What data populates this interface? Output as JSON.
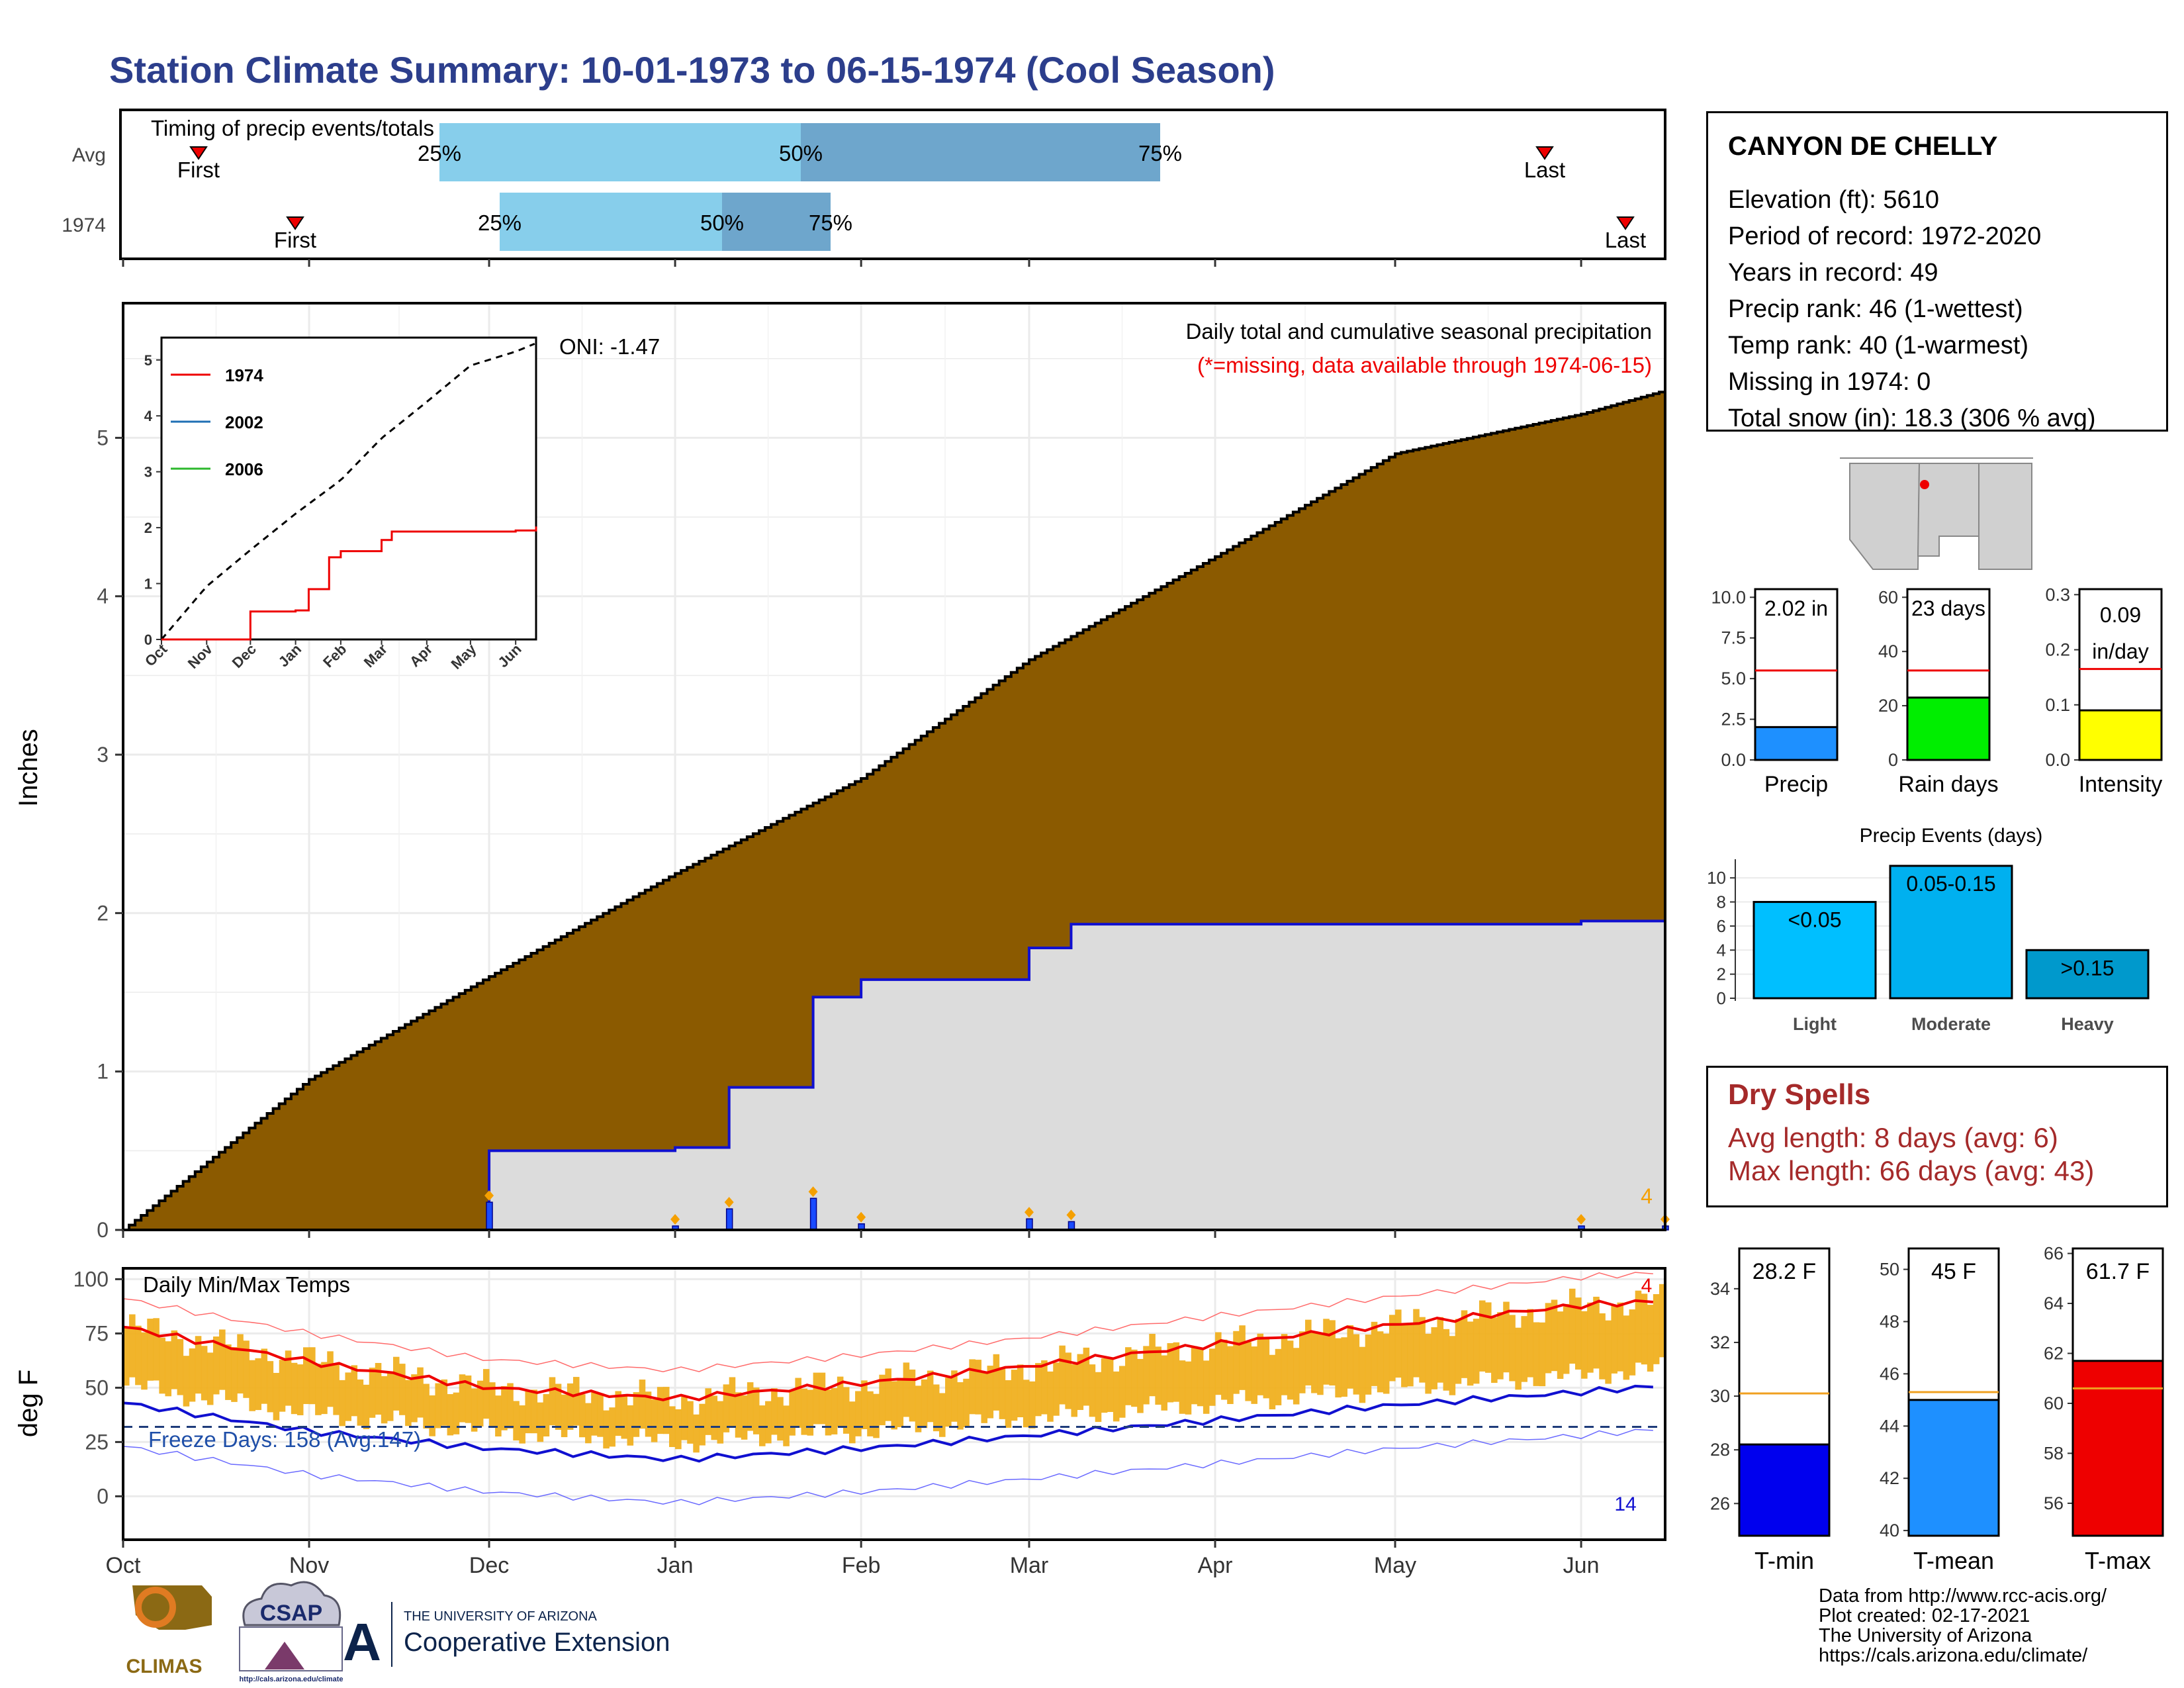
{
  "title": "Station Climate Summary: 10-01-1973 to 06-15-1974 (Cool Season)",
  "colors": {
    "title": "#2c3e8c",
    "cum_current": "#8b5a00",
    "cum_avg_fill": "#dcdcdc",
    "event_light": "#87ceeb",
    "event_dark": "#6ea6cc"
  },
  "timing": {
    "label": "Timing of precip events/totals",
    "rows": [
      "Avg",
      "1974"
    ],
    "avg": {
      "first": "First",
      "last": "Last",
      "p25": "25%",
      "p50": "50%",
      "p75": "75%"
    },
    "current": {
      "first": "First",
      "last": "Last",
      "p25": "25%",
      "p50": "50%",
      "p75": "75%"
    }
  },
  "station": {
    "name": "CANYON DE CHELLY",
    "lines": [
      "Elevation (ft): 5610",
      "Period of record: 1972-2020",
      "Years in record: 49",
      "Precip rank: 46 (1-wettest)",
      "Temp rank: 40 (1-warmest)",
      "Missing in 1974: 0",
      "Total snow (in): 18.3 (306 % avg)"
    ]
  },
  "precip_panel": {
    "ylabel": "Inches",
    "oni": "ONI: -1.47",
    "caption1": "Daily total and cumulative seasonal precipitation",
    "caption2": "(*=missing, data available through 1974-06-15)",
    "count_label": "4",
    "yticks": [
      "0",
      "1",
      "2",
      "3",
      "4",
      "5"
    ]
  },
  "temp_panel": {
    "ylabel": "deg F",
    "title": "Daily Min/Max Temps",
    "freeze": "Freeze Days: 158 (Avg:147)",
    "hi_count": "4",
    "lo_count": "14",
    "yticks": [
      "0",
      "25",
      "50",
      "75",
      "100"
    ]
  },
  "months": [
    "Oct",
    "Nov",
    "Dec",
    "Jan",
    "Feb",
    "Mar",
    "Apr",
    "May",
    "Jun"
  ],
  "inset": {
    "legend": [
      "1974",
      "2002",
      "2006"
    ],
    "months": [
      "Oct",
      "Nov",
      "Dec",
      "Jan",
      "Feb",
      "Mar",
      "Apr",
      "May",
      "Jun"
    ],
    "yticks": [
      "0",
      "1",
      "2",
      "3",
      "4",
      "5"
    ]
  },
  "mini_bars": {
    "precip": {
      "label": "Precip",
      "value_text": "2.02 in",
      "yticks": [
        "0.0",
        "2.5",
        "5.0",
        "7.5",
        "10.0"
      ]
    },
    "raindays": {
      "label": "Rain days",
      "value_text": "23 days",
      "yticks": [
        "0",
        "20",
        "40",
        "60"
      ]
    },
    "intensity": {
      "label": "Intensity",
      "value_text1": "0.09",
      "value_text2": "in/day",
      "yticks": [
        "0.0",
        "0.1",
        "0.2",
        "0.3"
      ]
    }
  },
  "events": {
    "title": "Precip Events (days)",
    "categories": [
      "Light",
      "Moderate",
      "Heavy"
    ],
    "labels": [
      "<0.05",
      "0.05-0.15",
      ">0.15"
    ],
    "yticks": [
      "0",
      "2",
      "4",
      "6",
      "8",
      "10"
    ]
  },
  "dry": {
    "title": "Dry Spells",
    "line1": "Avg length: 8 days (avg: 6)",
    "line2": "Max length: 66 days (avg: 43)"
  },
  "temp_bars": {
    "tmin": {
      "label": "T-min",
      "value_text": "28.2 F",
      "yticks": [
        "26",
        "28",
        "30",
        "32",
        "34"
      ]
    },
    "tmean": {
      "label": "T-mean",
      "value_text": "45 F",
      "yticks": [
        "40",
        "42",
        "44",
        "46",
        "48",
        "50"
      ]
    },
    "tmax": {
      "label": "T-max",
      "value_text": "61.7 F",
      "yticks": [
        "56",
        "58",
        "60",
        "62",
        "64",
        "66"
      ]
    }
  },
  "credits": [
    "Data from http://www.rcc-acis.org/",
    "Plot created: 02-17-2021",
    "The University of Arizona",
    "https://cals.arizona.edu/climate/"
  ],
  "logos": {
    "climas": "CLIMAS",
    "csap": "CSAP",
    "csap_url": "http://cals.arizona.edu/climate",
    "ua_small": "THE UNIVERSITY OF ARIZONA",
    "ua_big": "Cooperative Extension"
  },
  "chart_data": [
    {
      "type": "area",
      "title": "Daily total and cumulative seasonal precipitation",
      "ylabel": "Inches",
      "x_range": [
        "1973-10-01",
        "1974-06-15"
      ],
      "ylim": [
        0,
        5.85
      ],
      "series": [
        {
          "name": "Cumulative 1974",
          "x": [
            "1973-10-01",
            "1973-11-01",
            "1973-12-01",
            "1974-01-01",
            "1974-01-10",
            "1974-01-24",
            "1974-02-01",
            "1974-02-26",
            "1974-03-01",
            "1974-03-08",
            "1974-06-01",
            "1974-06-15"
          ],
          "values": [
            0,
            0,
            0.5,
            0.52,
            0.9,
            1.47,
            1.58,
            1.58,
            1.78,
            1.93,
            1.95,
            2.02
          ]
        },
        {
          "name": "Average cumulative",
          "x": [
            "1973-10-01",
            "1973-11-01",
            "1973-12-01",
            "1974-01-01",
            "1974-02-01",
            "1974-03-01",
            "1974-04-01",
            "1974-05-01",
            "1974-06-01",
            "1974-06-15"
          ],
          "values": [
            0,
            0.95,
            1.6,
            2.25,
            2.85,
            3.6,
            4.25,
            4.9,
            5.15,
            5.3
          ]
        }
      ],
      "grid": true
    },
    {
      "type": "line",
      "title": "Daily Min/Max Temps",
      "ylabel": "deg F",
      "ylim": [
        -20,
        105
      ],
      "series": [
        {
          "name": "Avg max",
          "x": [
            "10-01",
            "11-01",
            "12-01",
            "01-01",
            "02-01",
            "03-01",
            "04-01",
            "05-01",
            "06-01",
            "06-15"
          ],
          "values": [
            78,
            62,
            50,
            45,
            52,
            60,
            70,
            79,
            88,
            90
          ]
        },
        {
          "name": "Avg min",
          "x": [
            "10-01",
            "11-01",
            "12-01",
            "01-01",
            "02-01",
            "03-01",
            "04-01",
            "05-01",
            "06-01",
            "06-15"
          ],
          "values": [
            43,
            30,
            22,
            17,
            22,
            28,
            35,
            42,
            48,
            51
          ]
        }
      ],
      "freeze_line": 32
    },
    {
      "type": "bar",
      "categories": [
        "Light",
        "Moderate",
        "Heavy"
      ],
      "values": [
        8,
        11,
        4
      ],
      "ylim": [
        0,
        11
      ]
    },
    {
      "type": "bar",
      "categories": [
        "Precip",
        "Rain days",
        "Intensity"
      ],
      "values": [
        2.02,
        23,
        0.09
      ],
      "averages": [
        5.5,
        33,
        0.165
      ]
    },
    {
      "type": "bar",
      "categories": [
        "T-min",
        "T-mean",
        "T-max"
      ],
      "values": [
        28.2,
        45,
        61.7
      ],
      "averages": [
        30.1,
        45.3,
        60.6
      ]
    }
  ]
}
